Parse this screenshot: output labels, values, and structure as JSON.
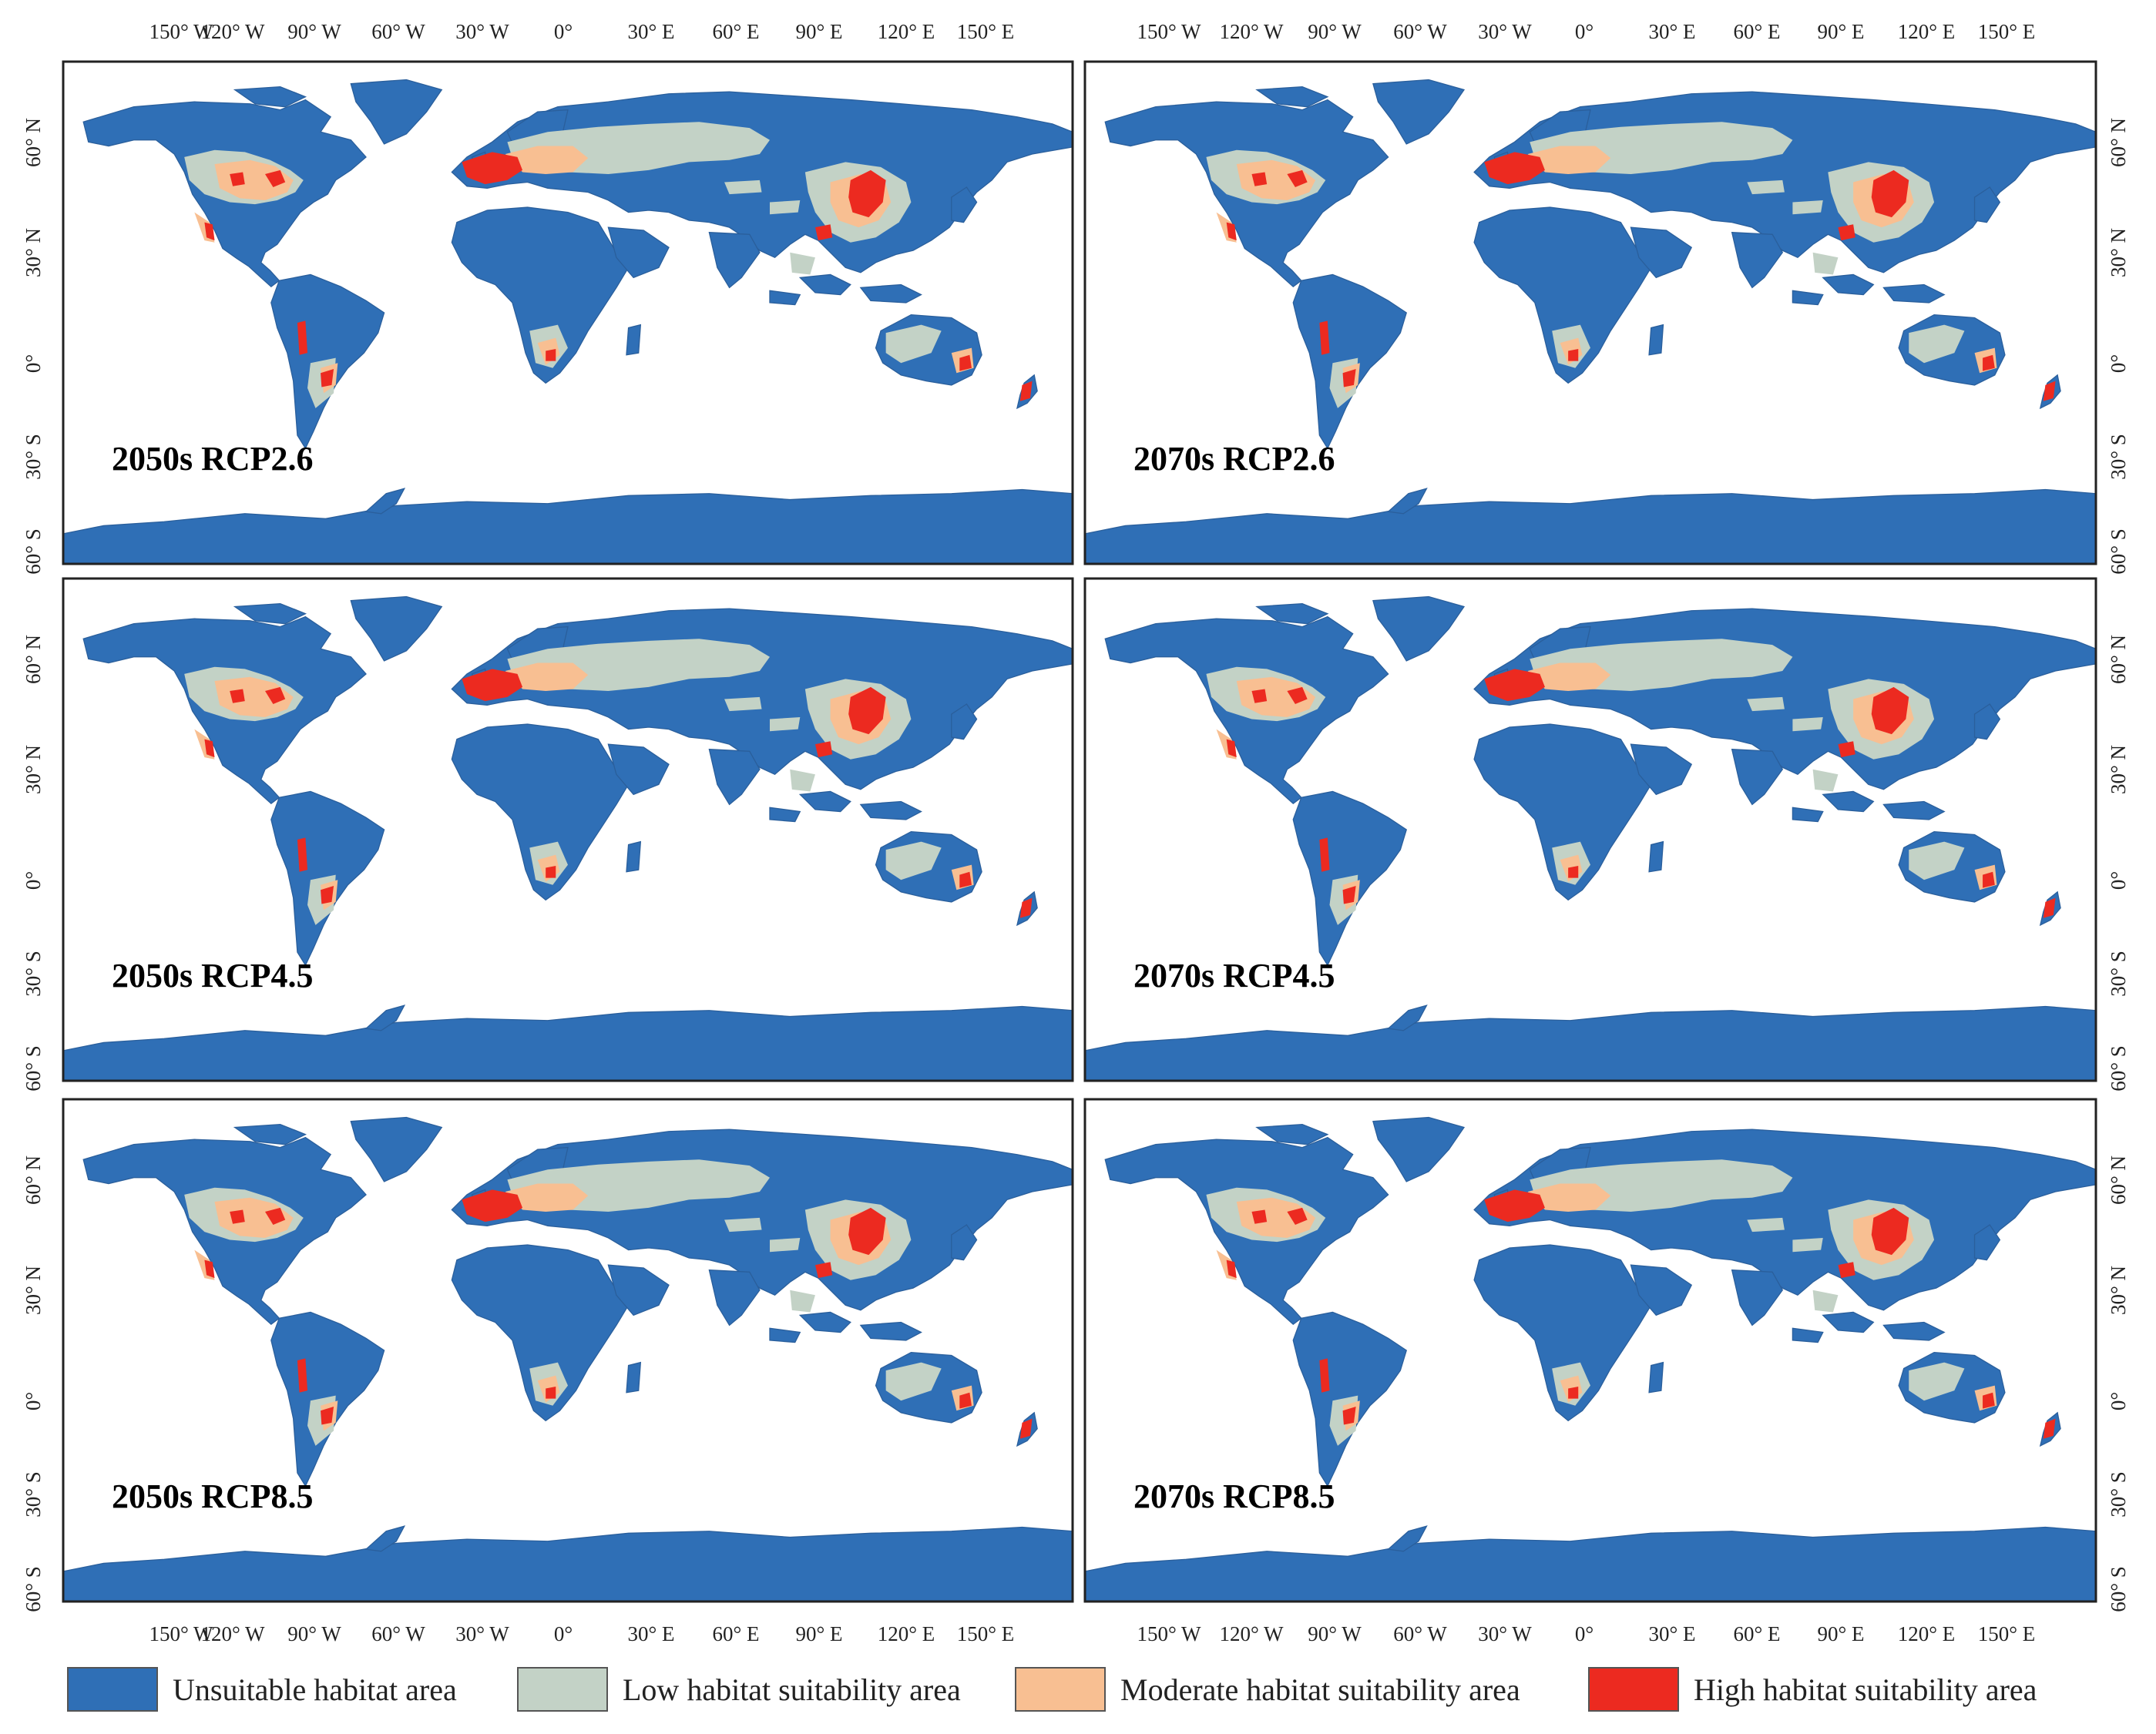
{
  "colors": {
    "unsuitable": "#2f6fb6",
    "low": "#c3d2c6",
    "moderate": "#f8bf92",
    "high": "#ec2a20",
    "ocean": "#ffffff",
    "frame": "#222222"
  },
  "axes": {
    "longitude_labels": [
      "150° W",
      "120° W",
      "90° W",
      "60° W",
      "30° W",
      "0°",
      "30° E",
      "60° E",
      "90° E",
      "120° E",
      "150° E"
    ],
    "latitude_labels": [
      "60° N",
      "30° N",
      "0°",
      "30° S",
      "60° S"
    ]
  },
  "panels": [
    {
      "label": "2050s RCP2.6"
    },
    {
      "label": "2070s RCP2.6"
    },
    {
      "label": "2050s RCP4.5"
    },
    {
      "label": "2070s RCP4.5"
    },
    {
      "label": "2050s RCP8.5"
    },
    {
      "label": "2070s RCP8.5"
    }
  ],
  "legend": [
    {
      "label": "Unsuitable habitat area",
      "color": "#2f6fb6"
    },
    {
      "label": "Low habitat suitability area",
      "color": "#c3d2c6"
    },
    {
      "label": "Moderate habitat suitability area",
      "color": "#f8bf92"
    },
    {
      "label": "High habitat suitability area",
      "color": "#ec2a20"
    }
  ]
}
